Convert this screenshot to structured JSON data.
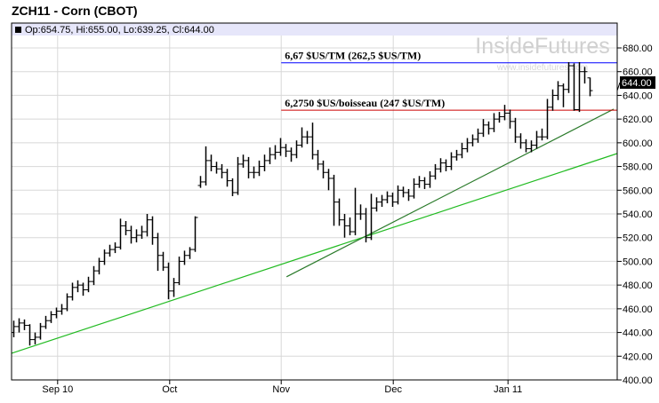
{
  "title": "ZCH11 - Corn (CBOT)",
  "ohlc_readout": "Op:654.75, Hi:655.00, Lo:639.25, Cl:644.00",
  "watermark": {
    "brand": "InsideFutures",
    "url": "www.insidefutures.com"
  },
  "last_price_label": "644.00",
  "colors": {
    "header_band": "#e6e6fa",
    "blue_line": "#0000ff",
    "red_line": "#cc0000",
    "light_trend": "#22bb22",
    "dark_trend": "#2a7a2a",
    "bars": "#000000"
  },
  "chart_data": {
    "type": "ohlc",
    "ylim": [
      400,
      690
    ],
    "yticks": [
      "400.00",
      "420.00",
      "440.00",
      "460.00",
      "480.00",
      "500.00",
      "520.00",
      "540.00",
      "560.00",
      "580.00",
      "600.00",
      "620.00",
      "640.00",
      "660.00",
      "680.00"
    ],
    "xticks": [
      {
        "label": "Sep 10",
        "at": 8.3
      },
      {
        "label": "Oct",
        "at": 29.3
      },
      {
        "label": "Nov",
        "at": 50.2
      },
      {
        "label": "Dec",
        "at": 71.2
      },
      {
        "label": "Jan 11",
        "at": 92.7
      }
    ],
    "grid": true,
    "bars": [
      [
        440,
        450,
        436,
        445
      ],
      [
        445,
        452,
        440,
        448
      ],
      [
        448,
        451,
        442,
        446
      ],
      [
        446,
        447,
        429,
        434
      ],
      [
        434,
        440,
        430,
        436
      ],
      [
        436,
        448,
        434,
        445
      ],
      [
        445,
        454,
        443,
        450
      ],
      [
        450,
        458,
        448,
        455
      ],
      [
        455,
        461,
        452,
        458
      ],
      [
        458,
        464,
        455,
        460
      ],
      [
        460,
        473,
        458,
        470
      ],
      [
        470,
        482,
        467,
        478
      ],
      [
        478,
        484,
        474,
        480
      ],
      [
        480,
        482,
        471,
        476
      ],
      [
        476,
        487,
        474,
        483
      ],
      [
        483,
        496,
        480,
        492
      ],
      [
        492,
        503,
        489,
        500
      ],
      [
        500,
        510,
        497,
        507
      ],
      [
        507,
        514,
        504,
        510
      ],
      [
        510,
        516,
        507,
        512
      ],
      [
        512,
        536,
        510,
        530
      ],
      [
        530,
        534,
        522,
        526
      ],
      [
        526,
        530,
        515,
        520
      ],
      [
        520,
        527,
        516,
        522
      ],
      [
        522,
        530,
        519,
        525
      ],
      [
        525,
        540,
        521,
        535
      ],
      [
        535,
        538,
        514,
        520
      ],
      [
        520,
        524,
        492,
        505
      ],
      [
        505,
        508,
        492,
        495
      ],
      [
        495,
        499,
        468,
        475
      ],
      [
        475,
        486,
        470,
        482
      ],
      [
        482,
        504,
        480,
        500
      ],
      [
        500,
        509,
        497,
        505
      ],
      [
        505,
        512,
        502,
        510
      ],
      [
        510,
        538,
        508,
        537
      ],
      [
        564,
        572,
        562,
        567
      ],
      [
        567,
        597,
        564,
        585
      ],
      [
        585,
        590,
        576,
        580
      ],
      [
        580,
        584,
        574,
        578
      ],
      [
        578,
        582,
        570,
        575
      ],
      [
        575,
        578,
        563,
        568
      ],
      [
        568,
        570,
        555,
        558
      ],
      [
        558,
        588,
        556,
        582
      ],
      [
        582,
        590,
        579,
        585
      ],
      [
        585,
        588,
        570,
        575
      ],
      [
        575,
        580,
        570,
        575
      ],
      [
        575,
        585,
        572,
        580
      ],
      [
        580,
        590,
        576,
        585
      ],
      [
        585,
        596,
        582,
        590
      ],
      [
        590,
        598,
        586,
        592
      ],
      [
        592,
        604,
        589,
        596
      ],
      [
        596,
        599,
        588,
        593
      ],
      [
        593,
        596,
        584,
        590
      ],
      [
        590,
        602,
        587,
        598
      ],
      [
        598,
        613,
        596,
        605
      ],
      [
        605,
        610,
        599,
        605
      ],
      [
        605,
        617,
        586,
        590
      ],
      [
        590,
        594,
        577,
        582
      ],
      [
        582,
        585,
        570,
        575
      ],
      [
        575,
        578,
        560,
        570
      ],
      [
        570,
        573,
        530,
        550
      ],
      [
        550,
        553,
        530,
        535
      ],
      [
        535,
        540,
        520,
        530
      ],
      [
        530,
        537,
        522,
        525
      ],
      [
        525,
        562,
        522,
        540
      ],
      [
        540,
        548,
        535,
        540
      ],
      [
        540,
        545,
        516,
        520
      ],
      [
        520,
        557,
        518,
        545
      ],
      [
        545,
        554,
        542,
        550
      ],
      [
        550,
        556,
        546,
        552
      ],
      [
        552,
        559,
        549,
        555
      ],
      [
        555,
        558,
        546,
        550
      ],
      [
        550,
        564,
        548,
        560
      ],
      [
        560,
        563,
        554,
        558
      ],
      [
        558,
        561,
        551,
        555
      ],
      [
        555,
        570,
        553,
        565
      ],
      [
        565,
        572,
        562,
        568
      ],
      [
        568,
        571,
        561,
        565
      ],
      [
        565,
        576,
        562,
        572
      ],
      [
        572,
        582,
        569,
        578
      ],
      [
        578,
        587,
        575,
        583
      ],
      [
        583,
        586,
        576,
        580
      ],
      [
        580,
        592,
        577,
        588
      ],
      [
        588,
        594,
        585,
        590
      ],
      [
        590,
        600,
        587,
        595
      ],
      [
        595,
        604,
        592,
        600
      ],
      [
        600,
        607,
        597,
        603
      ],
      [
        603,
        612,
        600,
        608
      ],
      [
        608,
        620,
        605,
        615
      ],
      [
        615,
        618,
        607,
        612
      ],
      [
        612,
        625,
        609,
        620
      ],
      [
        620,
        626,
        617,
        622
      ],
      [
        622,
        632,
        619,
        625
      ],
      [
        625,
        628,
        612,
        618
      ],
      [
        618,
        621,
        600,
        605
      ],
      [
        605,
        608,
        595,
        600
      ],
      [
        600,
        603,
        592,
        595
      ],
      [
        595,
        602,
        592,
        598
      ],
      [
        598,
        610,
        595,
        605
      ],
      [
        605,
        612,
        602,
        605
      ],
      [
        605,
        637,
        603,
        630
      ],
      [
        630,
        645,
        627,
        640
      ],
      [
        640,
        652,
        636,
        648
      ],
      [
        648,
        650,
        630,
        645
      ],
      [
        645,
        668,
        642,
        665
      ],
      [
        665,
        667,
        627,
        628
      ],
      [
        628,
        668,
        626,
        660
      ],
      [
        660,
        664,
        650,
        660
      ],
      [
        654.75,
        655,
        639.25,
        644
      ]
    ],
    "hlines": [
      {
        "label": "6,67 $US/TM (262,5 $US/TM)",
        "value": 667.5,
        "from": 50.2
      },
      {
        "label": "6,2750 $US/boisseau (247 $US/TM)",
        "value": 627.5,
        "from": 50.2
      }
    ],
    "trendlines": [
      {
        "from": [
          -0.3,
          422.5
        ],
        "to": [
          113.2,
          591
        ]
      },
      {
        "from": [
          51.2,
          487
        ],
        "to": [
          112.5,
          628.4
        ]
      }
    ]
  }
}
